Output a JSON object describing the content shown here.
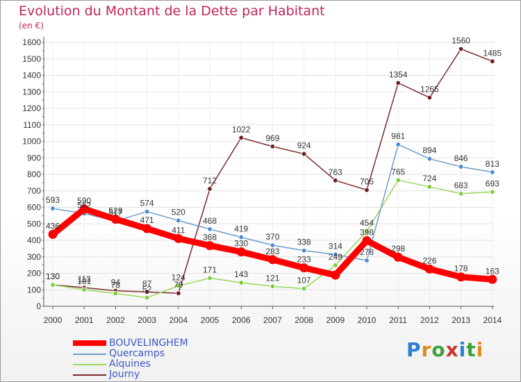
{
  "header": {
    "title": "Evolution du Montant de la Dette par Habitant",
    "subtitle": "(en €)"
  },
  "logo": {
    "letters": [
      "P",
      "r",
      "o",
      "x",
      "i",
      "t",
      "i"
    ],
    "colors": [
      "#2f7fd0",
      "#e08a1c",
      "#3aa33a",
      "#d0312d",
      "#2f7fd0",
      "#3aa33a",
      "#e08a1c"
    ]
  },
  "chart_data": {
    "type": "line",
    "x": [
      "2000",
      "2001",
      "2002",
      "2003",
      "2004",
      "2005",
      "2006",
      "2007",
      "2008",
      "2009",
      "2010",
      "2011",
      "2012",
      "2013",
      "2014"
    ],
    "yticks": [
      0,
      100,
      200,
      300,
      400,
      500,
      600,
      700,
      800,
      900,
      1000,
      1100,
      1200,
      1300,
      1400,
      1500,
      1600
    ],
    "ylim": [
      0,
      1600
    ],
    "grid": true,
    "legend_position": "bottom-left",
    "series": [
      {
        "name": "BOUVELINGHEM",
        "color": "#ff0000",
        "marker_fill": "#ff0000",
        "thick": true,
        "x": [
          "2000",
          "2001",
          "2002",
          "2003",
          "2004",
          "2005",
          "2006",
          "2007",
          "2008",
          "2009",
          "2010",
          "2011",
          "2012",
          "2013",
          "2014"
        ],
        "values": [
          436,
          590,
          528,
          471,
          411,
          368,
          330,
          283,
          233,
          189,
          398,
          298,
          226,
          178,
          163
        ],
        "labels": [
          "436",
          "590",
          "528",
          "471",
          "411",
          "368",
          "330",
          "283",
          "233",
          "",
          "398",
          "298",
          "226",
          "178",
          "163"
        ]
      },
      {
        "name": "Quercamps",
        "color": "#6a9ccc",
        "marker_fill": "#4a8ad0",
        "thick": false,
        "x": [
          "2000",
          "2001",
          "2002",
          "2003",
          "2004",
          "2005",
          "2006",
          "2007",
          "2008",
          "2009",
          "2010",
          "2011",
          "2012",
          "2013",
          "2014"
        ],
        "values": [
          593,
          562,
          517,
          574,
          520,
          468,
          419,
          370,
          338,
          314,
          278,
          981,
          894,
          846,
          813
        ],
        "labels": [
          "593",
          "562",
          "517",
          "574",
          "520",
          "468",
          "419",
          "370",
          "338",
          "314",
          "278",
          "981",
          "894",
          "846",
          "813"
        ]
      },
      {
        "name": "Alquines",
        "color": "#9ad65a",
        "marker_fill": "#7ccf3e",
        "thick": false,
        "x": [
          "2000",
          "2001",
          "2002",
          "2003",
          "2004",
          "2005",
          "2006",
          "2007",
          "2008",
          "2009",
          "2010",
          "2011",
          "2012",
          "2013",
          "2014"
        ],
        "values": [
          130,
          101,
          78,
          52,
          124,
          171,
          143,
          121,
          107,
          249,
          454,
          765,
          724,
          683,
          693
        ],
        "labels": [
          "130",
          "101",
          "78",
          "52",
          "124",
          "171",
          "143",
          "121",
          "107",
          "249",
          "454",
          "765",
          "724",
          "683",
          "693"
        ]
      },
      {
        "name": "Journy",
        "color": "#7a2a2a",
        "marker_fill": "#6a1f1f",
        "thick": false,
        "x": [
          "2000",
          "2001",
          "2002",
          "2003",
          "2004",
          "2005",
          "2006",
          "2007",
          "2008",
          "2009",
          "2010",
          "2011",
          "2012",
          "2013",
          "2014"
        ],
        "values": [
          130,
          113,
          94,
          87,
          79,
          712,
          1022,
          969,
          924,
          763,
          705,
          1354,
          1265,
          1560,
          1485
        ],
        "labels": [
          "130",
          "113",
          "94",
          "87",
          "79",
          "712",
          "1022",
          "969",
          "924",
          "763",
          "705",
          "1354",
          "1265",
          "1560",
          "1485"
        ]
      }
    ]
  }
}
